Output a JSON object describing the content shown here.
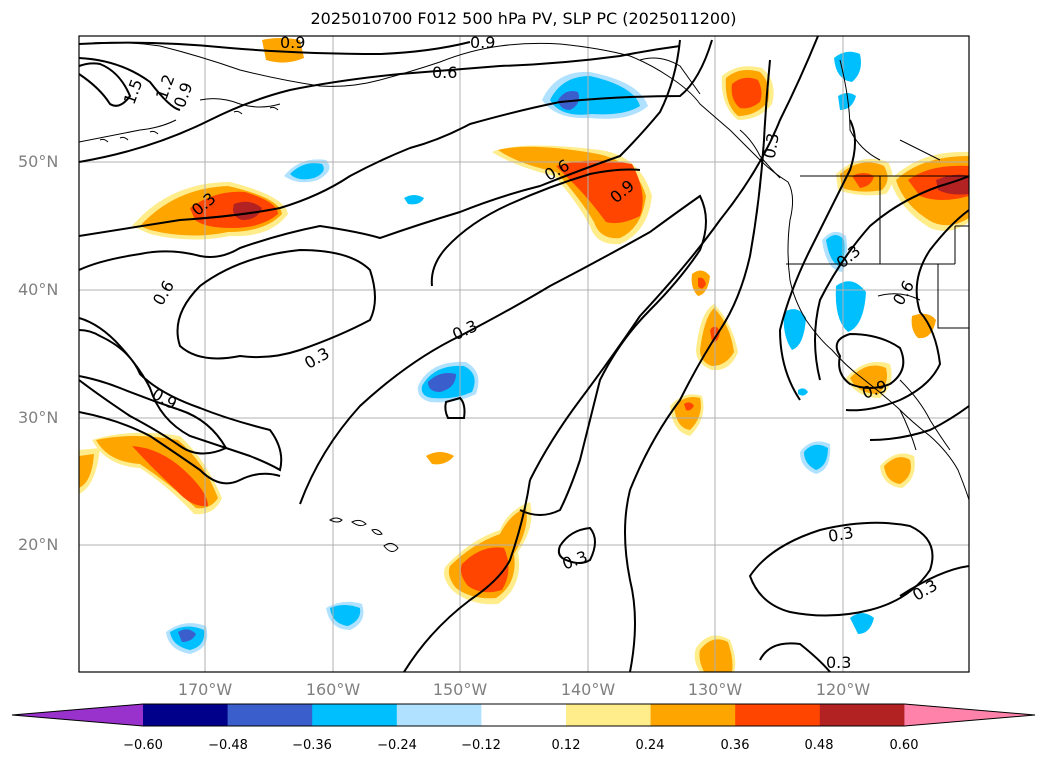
{
  "title": "2025010700 F012 500 hPa PV, SLP PC (2025011200)",
  "lat_labels": [
    {
      "text": "50°N",
      "lat": 50
    },
    {
      "text": "40°N",
      "lat": 40
    },
    {
      "text": "30°N",
      "lat": 30
    },
    {
      "text": "20°N",
      "lat": 20
    }
  ],
  "lon_labels": [
    {
      "text": "170°W",
      "lon": -170
    },
    {
      "text": "160°W",
      "lon": -160
    },
    {
      "text": "150°W",
      "lon": -150
    },
    {
      "text": "140°W",
      "lon": -140
    },
    {
      "text": "130°W",
      "lon": -130
    },
    {
      "text": "120°W",
      "lon": -120
    }
  ],
  "colorbar": {
    "labels": [
      "−0.60",
      "−0.48",
      "−0.36",
      "−0.24",
      "−0.12",
      "0.12",
      "0.24",
      "0.36",
      "0.48",
      "0.60"
    ],
    "colors": [
      "#9932cc",
      "#00008b",
      "#3a5fcd",
      "#00bfff",
      "#b0e2ff",
      "#ffffff",
      "#ffec8b",
      "#ffa500",
      "#ff4500",
      "#b22222",
      "#ff82ab"
    ]
  },
  "contour_labels": [
    "0.9",
    "0.9",
    "0.6",
    "1.5",
    "1.2",
    "0.9",
    "0.3",
    "0.6",
    "0.9",
    "0.3",
    "0.3",
    "0.6",
    "0.6",
    "0.3",
    "0.3",
    "0.9",
    "0.9",
    "0.3",
    "0.3",
    "0.3",
    "0.3"
  ],
  "colors": {
    "gridline": "#b0b0b0",
    "coast": "#000000",
    "contour": "#000000"
  }
}
